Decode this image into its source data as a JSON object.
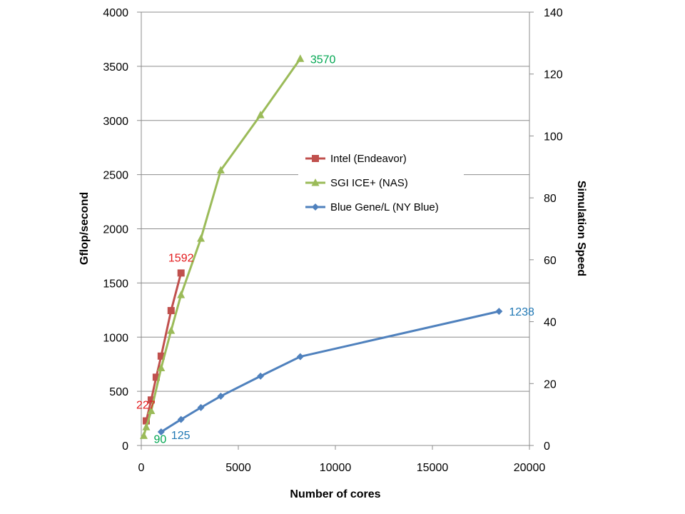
{
  "chart_data": {
    "type": "line",
    "xlabel": "Number of cores",
    "ylabel": "Gflop/second",
    "y2label": "Simulation Speed",
    "xlim": [
      0,
      20000
    ],
    "ylim": [
      0,
      4000
    ],
    "y2lim": [
      0,
      140
    ],
    "x_ticks": [
      "0",
      "5000",
      "10000",
      "15000",
      "20000"
    ],
    "y_ticks": [
      "0",
      "500",
      "1000",
      "1500",
      "2000",
      "2500",
      "3000",
      "3500",
      "4000"
    ],
    "y2_ticks": [
      "0",
      "20",
      "40",
      "60",
      "80",
      "100",
      "120",
      "140"
    ],
    "grid": "horizontal",
    "legend_position": "center",
    "series": [
      {
        "name": "Intel (Endeavor)",
        "color": "#C0504D",
        "marker": "square",
        "label_color": "#E31A1C",
        "x": [
          256,
          512,
          768,
          1024,
          1536,
          2048
        ],
        "y": [
          227,
          420,
          630,
          825,
          1245,
          1592
        ],
        "labels": [
          {
            "index": 0,
            "text": "227",
            "anchor": "start",
            "pos": "left"
          },
          {
            "index": 5,
            "text": "1592",
            "pos": "above"
          }
        ]
      },
      {
        "name": "SGI ICE+ (NAS)",
        "color": "#9BBB59",
        "marker": "triangle",
        "label_color": "#00A651",
        "x": [
          128,
          256,
          512,
          1024,
          1536,
          2048,
          3072,
          4096,
          6144,
          8192
        ],
        "y": [
          90,
          170,
          320,
          715,
          1060,
          1390,
          1910,
          2540,
          3050,
          3570
        ],
        "labels": [
          {
            "index": 0,
            "text": "90",
            "pos": "right-below"
          },
          {
            "index": 9,
            "text": "3570",
            "pos": "right"
          }
        ]
      },
      {
        "name": "Blue Gene/L (NY Blue)",
        "color": "#4F81BD",
        "marker": "diamond",
        "label_color": "#1F77B4",
        "x": [
          1024,
          2048,
          3072,
          4096,
          6144,
          8192,
          18432
        ],
        "y": [
          125,
          240,
          350,
          455,
          640,
          820,
          1238
        ],
        "labels": [
          {
            "index": 0,
            "text": "125",
            "pos": "right-below"
          },
          {
            "index": 6,
            "text": "1238",
            "pos": "right"
          }
        ]
      }
    ]
  }
}
